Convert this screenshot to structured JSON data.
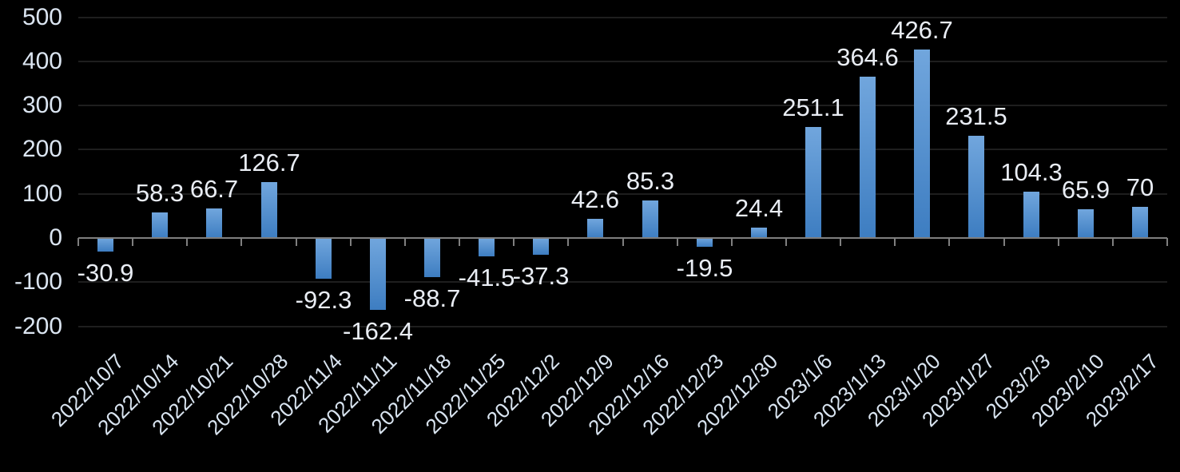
{
  "chart_data": {
    "type": "bar",
    "title": "",
    "categories": [
      "2022/10/7",
      "2022/10/14",
      "2022/10/21",
      "2022/10/28",
      "2022/11/4",
      "2022/11/11",
      "2022/11/18",
      "2022/11/25",
      "2022/12/2",
      "2022/12/9",
      "2022/12/16",
      "2022/12/23",
      "2022/12/30",
      "2023/1/6",
      "2023/1/13",
      "2023/1/20",
      "2023/1/27",
      "2023/2/3",
      "2023/2/10",
      "2023/2/17"
    ],
    "values": [
      -30.9,
      58.3,
      66.7,
      126.7,
      -92.3,
      -162.4,
      -88.7,
      -41.5,
      -37.3,
      42.6,
      85.3,
      -19.5,
      24.4,
      251.1,
      364.6,
      426.7,
      231.5,
      104.3,
      65.9,
      70
    ],
    "data_labels": [
      "-30.9",
      "58.3",
      "66.7",
      "126.7",
      "-92.3",
      "-162.4",
      "-88.7",
      "-41.5",
      "-37.3",
      "42.6",
      "85.3",
      "-19.5",
      "24.4",
      "251.1",
      "364.6",
      "426.7",
      "231.5",
      "104.3",
      "65.9",
      "70"
    ],
    "xlabel": "",
    "ylabel": "",
    "y_axis": {
      "ticks": [
        500,
        400,
        300,
        200,
        100,
        0,
        -100,
        -200
      ],
      "min": -200,
      "max": 500
    },
    "grid": true,
    "legend": false,
    "label_rotation_deg": 45,
    "colors": {
      "background": "#000000",
      "bar_gradient_top": "#71a6dd",
      "bar_gradient_bottom": "#3d7dc1",
      "gridline": "#1e1e1e",
      "axis_line": "#7f7f7f",
      "axis_text": "#dbe5f1",
      "data_label_text": "#e9edf4"
    }
  }
}
